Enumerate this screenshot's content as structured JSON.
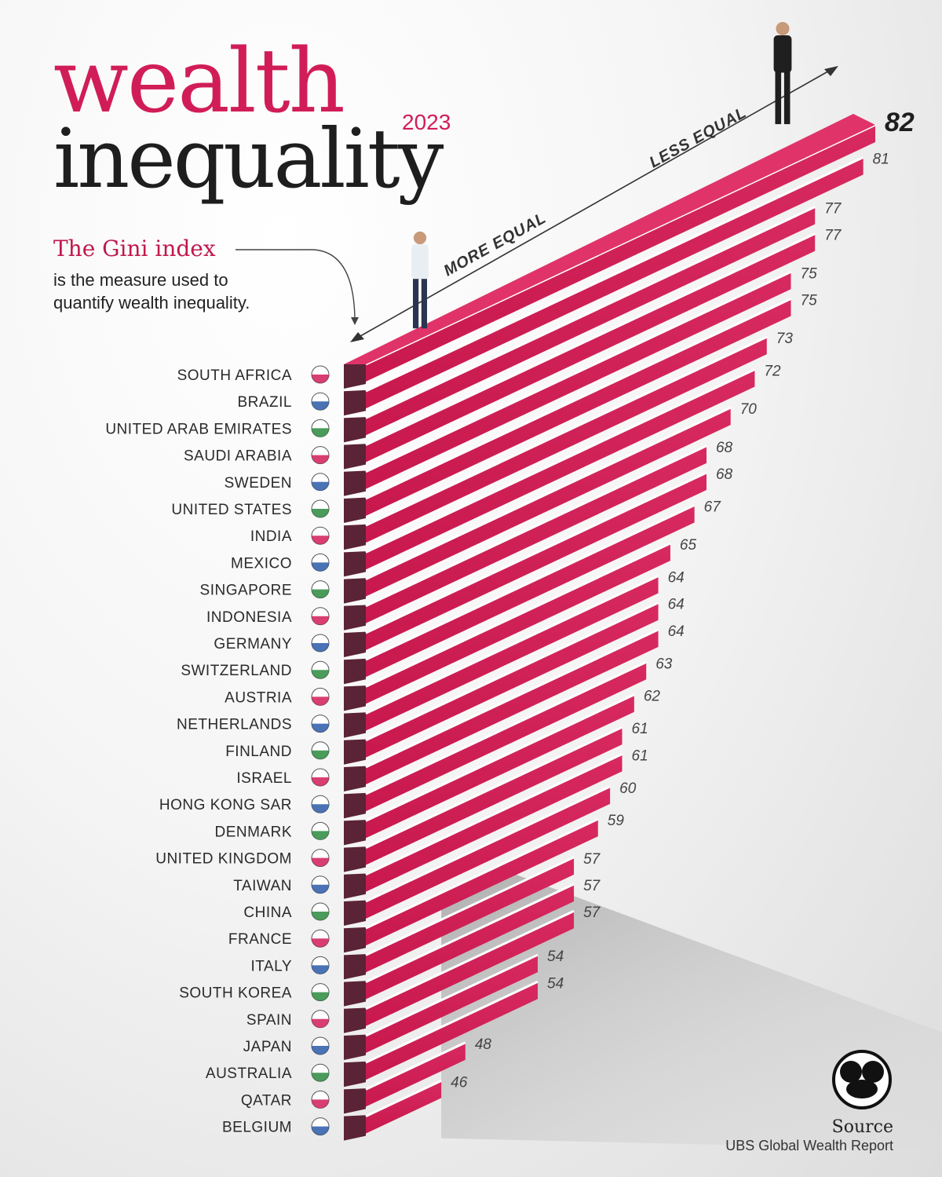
{
  "header": {
    "title_line1": "wealth",
    "title_line2": "inequality",
    "year": "2023"
  },
  "explainer": {
    "heading": "The Gini index",
    "body": "is the measure used to quantify wealth inequality."
  },
  "source": {
    "label": "Source",
    "text": "UBS Global Wealth Report"
  },
  "colors": {
    "accent": "#d11d57",
    "bar_top": "#e0336a",
    "bar_front": "#c8184e",
    "bar_side": "#5a2436",
    "text_dark": "#1e1e1e"
  },
  "chart_data": {
    "type": "bar",
    "title": "wealth inequality 2023",
    "value_label": "Gini index",
    "axis_labels": {
      "low": "MORE EQUAL",
      "high": "LESS EQUAL"
    },
    "categories": [
      "SOUTH AFRICA",
      "BRAZIL",
      "UNITED ARAB EMIRATES",
      "SAUDI ARABIA",
      "SWEDEN",
      "UNITED STATES",
      "INDIA",
      "MEXICO",
      "SINGAPORE",
      "INDONESIA",
      "GERMANY",
      "SWITZERLAND",
      "AUSTRIA",
      "NETHERLANDS",
      "FINLAND",
      "ISRAEL",
      "HONG KONG SAR",
      "DENMARK",
      "UNITED KINGDOM",
      "TAIWAN",
      "CHINA",
      "FRANCE",
      "ITALY",
      "SOUTH KOREA",
      "SPAIN",
      "JAPAN",
      "AUSTRALIA",
      "QATAR",
      "BELGIUM"
    ],
    "values": [
      82,
      81,
      77,
      77,
      75,
      75,
      73,
      72,
      70,
      68,
      68,
      67,
      65,
      64,
      64,
      64,
      63,
      62,
      61,
      61,
      60,
      59,
      57,
      57,
      57,
      54,
      54,
      48,
      46
    ],
    "flags": [
      "south-africa-flag",
      "brazil-flag",
      "uae-flag",
      "saudi-arabia-flag",
      "sweden-flag",
      "united-states-flag",
      "india-flag",
      "mexico-flag",
      "singapore-flag",
      "indonesia-flag",
      "germany-flag",
      "switzerland-flag",
      "austria-flag",
      "netherlands-flag",
      "finland-flag",
      "israel-flag",
      "hong-kong-flag",
      "denmark-flag",
      "united-kingdom-flag",
      "taiwan-flag",
      "china-flag",
      "france-flag",
      "italy-flag",
      "south-korea-flag",
      "spain-flag",
      "japan-flag",
      "australia-flag",
      "qatar-flag",
      "belgium-flag"
    ],
    "highlight": "82"
  }
}
